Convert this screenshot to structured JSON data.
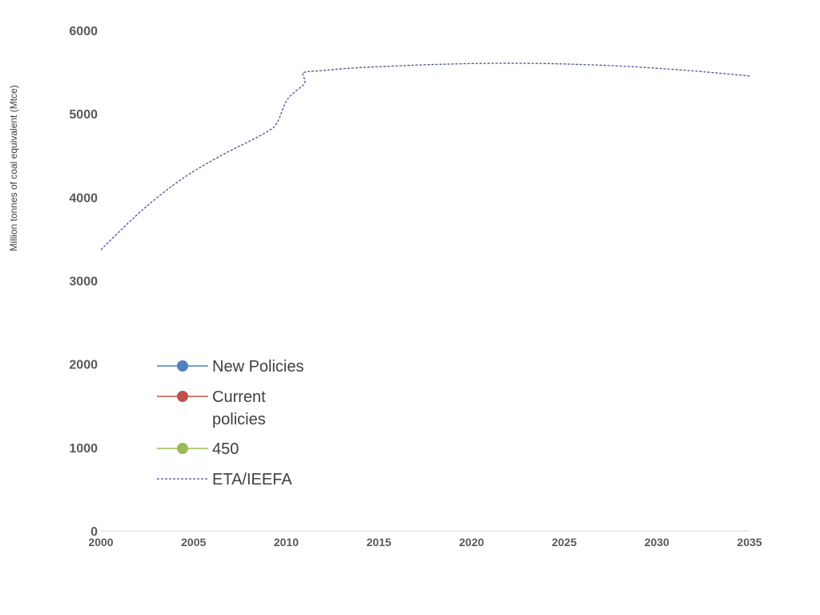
{
  "chart_data": {
    "type": "line",
    "title": "",
    "xlabel": "",
    "ylabel": "Million tonnes of coal equivalent (Mtce)",
    "xlim": [
      2000,
      2035
    ],
    "ylim": [
      0,
      6000
    ],
    "x_ticks": [
      "2000",
      "2005",
      "2010",
      "2015",
      "2020",
      "2025",
      "2030",
      "2035"
    ],
    "y_ticks": [
      "0",
      "1000",
      "2000",
      "3000",
      "4000",
      "5000",
      "6000"
    ],
    "grid": false,
    "legend_position": "lower-left",
    "legend": [
      {
        "name": "New Policies",
        "color": "#4f81bd",
        "style": "solid-marker"
      },
      {
        "name": "Current policies",
        "color": "#c0504d",
        "style": "solid-marker"
      },
      {
        "name": "450",
        "color": "#9bbb59",
        "style": "solid-marker"
      },
      {
        "name": "ETA/IEEFA",
        "color": "#4b4fa0",
        "style": "dashed"
      }
    ],
    "series": [
      {
        "name": "New Policies",
        "color": "#4f81bd",
        "x": [],
        "y": []
      },
      {
        "name": "Current policies",
        "color": "#c0504d",
        "x": [],
        "y": []
      },
      {
        "name": "450",
        "color": "#9bbb59",
        "x": [],
        "y": []
      },
      {
        "name": "ETA/IEEFA",
        "color": "#4b4fa0",
        "dashed": true,
        "x": [
          2000,
          2001,
          2002,
          2003,
          2004,
          2005,
          2006,
          2007,
          2008,
          2009,
          2009.5,
          2010,
          2010.5,
          2011,
          2010.9,
          2011,
          2012,
          2013,
          2014,
          2015,
          2016,
          2017,
          2018,
          2019,
          2020,
          2021,
          2022,
          2023,
          2024,
          2025,
          2026,
          2027,
          2028,
          2029,
          2030,
          2031,
          2032,
          2033,
          2034,
          2035
        ],
        "y": [
          3370,
          3590,
          3800,
          3990,
          4160,
          4310,
          4440,
          4560,
          4670,
          4790,
          4890,
          5150,
          5270,
          5370,
          5470,
          5500,
          5520,
          5540,
          5555,
          5565,
          5575,
          5585,
          5592,
          5598,
          5603,
          5606,
          5607,
          5606,
          5603,
          5598,
          5591,
          5583,
          5573,
          5561,
          5547,
          5531,
          5514,
          5495,
          5475,
          5453
        ]
      }
    ]
  }
}
